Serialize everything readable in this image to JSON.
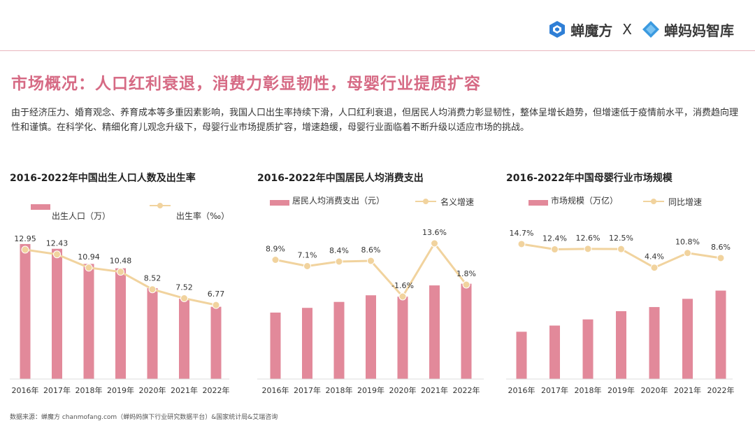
{
  "brand": {
    "left_name": "蝉魔方",
    "separator": "X",
    "right_name": "蝉妈妈智库"
  },
  "page_title": "市场概况：人口红利衰退，消费力彰显韧性，母婴行业提质扩容",
  "intro_text": "由于经济压力、婚育观念、养育成本等多重因素影响，我国人口出生率持续下滑，人口红利衰退，但居民人均消费力彰显韧性，整体呈增长趋势，但增速低于疫情前水平，消费趋向理性和谨慎。在科学化、精细化育儿观念升级下，母婴行业市场提质扩容，增速趋缓，母婴行业面临着不断升级以适应市场的挑战。",
  "footer": "数据来源：蝉魔方 chanmofang.com（蝉妈妈旗下行业研究数据平台）&国家统计局&艾瑞咨询",
  "colors": {
    "title_pink": "#d66a84",
    "bar": "#e2899a",
    "line": "#f1d39e",
    "rule": "#e9b7be"
  },
  "icons": [
    "cube-logo-icon",
    "diamond-logo-icon"
  ],
  "chart_data": [
    {
      "type": "bar+line",
      "title": "2016-2022年中国出生人口人数及出生率",
      "categories": [
        "2016年",
        "2017年",
        "2018年",
        "2019年",
        "2020年",
        "2021年",
        "2022年"
      ],
      "series": [
        {
          "name": "出生人口（万）",
          "type": "bar",
          "values": [
            1786,
            1723,
            1523,
            1465,
            1202,
            1062,
            956
          ]
        },
        {
          "name": "出生率（‰）",
          "type": "line",
          "values": [
            12.95,
            12.43,
            10.94,
            10.48,
            8.52,
            7.52,
            6.77
          ],
          "labels": [
            "12.95",
            "12.43",
            "10.94",
            "10.48",
            "8.52",
            "7.52",
            "6.77"
          ]
        }
      ],
      "legend": "top"
    },
    {
      "type": "bar+line",
      "title": "2016-2022年中国居民人均消费支出",
      "categories": [
        "2016年",
        "2017年",
        "2018年",
        "2019年",
        "2020年",
        "2021年",
        "2022年"
      ],
      "series": [
        {
          "name": "居民人均消费支出（元）",
          "type": "bar",
          "values": [
            17111,
            18322,
            19853,
            21559,
            21210,
            24100,
            24538
          ]
        },
        {
          "name": "名义增速",
          "type": "line",
          "values": [
            8.9,
            7.1,
            8.4,
            8.6,
            -1.6,
            13.6,
            1.8
          ],
          "labels": [
            "8.9%",
            "7.1%",
            "8.4%",
            "8.6%",
            "-1.6%",
            "13.6%",
            "1.8%"
          ]
        }
      ],
      "legend": "top"
    },
    {
      "type": "bar+line",
      "title": "2016-2022年中国母婴行业市场规模",
      "categories": [
        "2016年",
        "2017年",
        "2018年",
        "2019年",
        "2020年",
        "2021年",
        "2022年"
      ],
      "series": [
        {
          "name": "市场规模（万亿）",
          "type": "bar",
          "values": [
            2.3,
            2.6,
            2.9,
            3.3,
            3.5,
            3.9,
            4.3
          ]
        },
        {
          "name": "同比增速",
          "type": "line",
          "values": [
            14.7,
            12.4,
            12.6,
            12.5,
            4.4,
            10.8,
            8.6
          ],
          "labels": [
            "14.7%",
            "12.4%",
            "12.6%",
            "12.5%",
            "4.4%",
            "10.8%",
            "8.6%"
          ]
        }
      ],
      "legend": "top"
    }
  ]
}
